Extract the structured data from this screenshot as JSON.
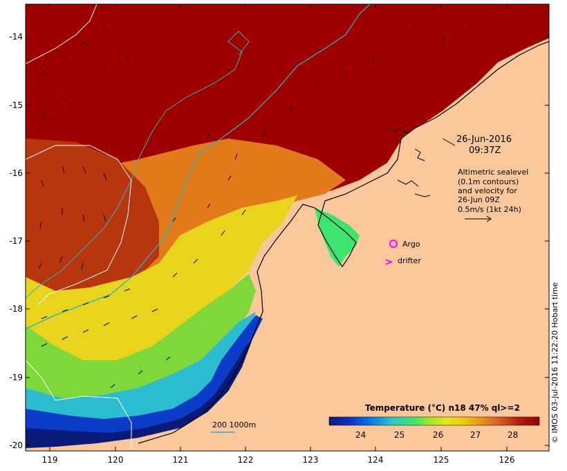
{
  "map": {
    "type": "sst-map",
    "x_axis": {
      "ticks": [
        "119",
        "120",
        "121",
        "122",
        "123",
        "124",
        "125",
        "126"
      ],
      "range": [
        118.6,
        126.7
      ]
    },
    "y_axis": {
      "ticks": [
        "-14",
        "-15",
        "-16",
        "-17",
        "-18",
        "-19",
        "-20"
      ],
      "range": [
        -20.1,
        -13.45
      ]
    },
    "date_label": "26-Jun-2016",
    "time_label": "09:37Z",
    "legend_lines": [
      "Altimetric sealevel",
      "(0.1m contours)",
      "and velocity for",
      "26-Jun 09Z",
      "0.5m/s (1kt 24h)"
    ],
    "argo_label": "Argo",
    "drifter_label": "drifter",
    "drifter_symbol": ">",
    "bathy_label": "200  1000m",
    "colorbar": {
      "title": "Temperature (°C) n18 47% ql>=2",
      "tick_labels": [
        "24",
        "25",
        "26",
        "27",
        "28"
      ],
      "colors": [
        "#0a1a78",
        "#0a35c8",
        "#0a78e6",
        "#2ec8c8",
        "#3ce66e",
        "#a0e628",
        "#e6e61e",
        "#f0c814",
        "#e6961e",
        "#d25a1e",
        "#b41e0a",
        "#960000"
      ]
    },
    "credit": "© IMOS 03-Jul-2016 11:22:20 Hobart time"
  },
  "colors": {
    "land": "#fac89a",
    "hot": "#a00000",
    "contour_cyan": "#28b4c8",
    "magenta": "#ff00ff"
  }
}
